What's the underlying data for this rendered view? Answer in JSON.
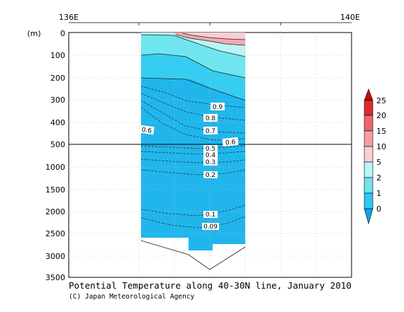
{
  "chart_data": {
    "type": "section",
    "title": "Potential Temperature along 40-30N line, January 2010",
    "credit": "(C) Japan Meteorological Agency",
    "x_ticks": [
      "136E",
      "140E"
    ],
    "y_unit": "(m)",
    "y_ticks": [
      "0",
      "100",
      "200",
      "300",
      "400",
      "500",
      "1000",
      "1500",
      "2000",
      "2500",
      "3000",
      "3500"
    ],
    "colorbar": {
      "labels": [
        "0",
        "1",
        "2",
        "5",
        "10",
        "15",
        "20",
        "25"
      ],
      "colors": [
        "#0ca3e8",
        "#2fc8f2",
        "#6de4ee",
        "#b8f5f6",
        "#f7cfd4",
        "#f79ca4",
        "#f06470",
        "#e02a2e",
        "#c00a0a"
      ]
    },
    "contour_labels": [
      "0.9",
      "0.8",
      "0.7",
      "0.6",
      "0.6",
      "0.5",
      "0.4",
      "0.3",
      "0.2",
      "0.1",
      "0.09"
    ],
    "grid": true
  }
}
